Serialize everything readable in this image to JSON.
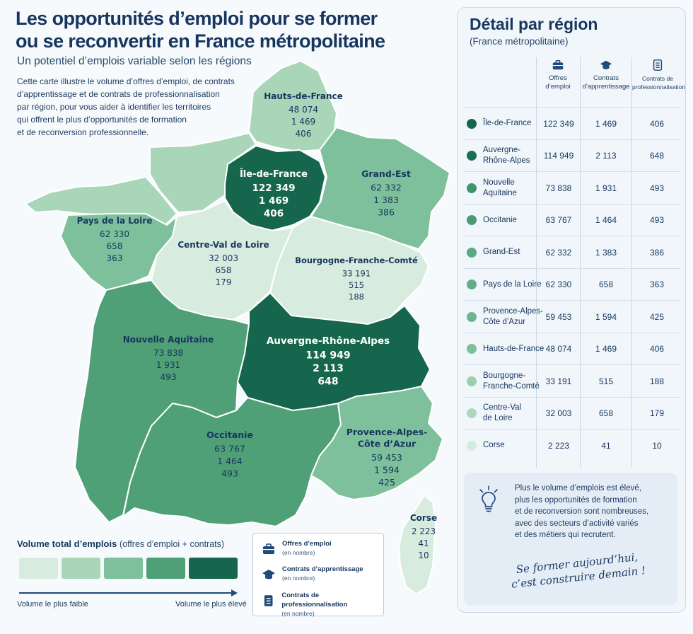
{
  "header": {
    "title_line1": "Les opportunités d’emploi pour se former",
    "title_line2": "ou se reconvertir en France métropolitaine",
    "subtitle": "Un potentiel d’emplois variable selon les régions",
    "intro": [
      "Cette carte illustre le volume d’offres d’emploi, de contrats",
      "d’apprentissage et de contrats de professionnalisation",
      "par région, pour vous aider à identifier les territoires",
      "qui offrent le plus d’opportunités de formation",
      "et de reconversion professionnelle."
    ]
  },
  "colors": {
    "level1": "#d7ecdf",
    "level2": "#a9d6b9",
    "level3": "#7ec09b",
    "level4": "#4f9f77",
    "level5": "#15664c",
    "corse": "#d7ecdf"
  },
  "map": {
    "regions": [
      {
        "id": "hauts-de-france",
        "label_lines": [
          "Hauts-de-France"
        ],
        "values": [
          "48 074",
          "1 469",
          "406"
        ],
        "level": 2
      },
      {
        "id": "ile-de-france",
        "label_lines": [
          "Île-de-France"
        ],
        "values": [
          "122 349",
          "1 469",
          "406"
        ],
        "level": 5
      },
      {
        "id": "grand-est",
        "label_lines": [
          "Grand-Est"
        ],
        "values": [
          "62 332",
          "1 383",
          "386"
        ],
        "level": 3
      },
      {
        "id": "pays-de-la-loire",
        "label_lines": [
          "Pays de la Loire"
        ],
        "values": [
          "62 330",
          "658",
          "363"
        ],
        "level": 3
      },
      {
        "id": "centre-val-de-loire",
        "label_lines": [
          "Centre-Val de Loire"
        ],
        "values": [
          "32 003",
          "658",
          "179"
        ],
        "level": 1
      },
      {
        "id": "bourgogne-franche-comte",
        "label_lines": [
          "Bourgogne-Franche-Comté"
        ],
        "values": [
          "33 191",
          "515",
          "188"
        ],
        "level": 1
      },
      {
        "id": "nouvelle-aquitaine",
        "label_lines": [
          "Nouvelle Aquitaine"
        ],
        "values": [
          "73 838",
          "1 931",
          "493"
        ],
        "level": 4
      },
      {
        "id": "auvergne-rhone-alpes",
        "label_lines": [
          "Auvergne-Rhône-Alpes"
        ],
        "values": [
          "114 949",
          "2 113",
          "648"
        ],
        "level": 5
      },
      {
        "id": "occitanie",
        "label_lines": [
          "Occitanie"
        ],
        "values": [
          "63 767",
          "1 464",
          "493"
        ],
        "level": 4
      },
      {
        "id": "provence-alpes-cote-d-azur",
        "label_lines": [
          "Provence-Alpes-",
          "Côte d’Azur"
        ],
        "values": [
          "59 453",
          "1 594",
          "425"
        ],
        "level": 3
      },
      {
        "id": "corse",
        "label_lines": [
          "Corse"
        ],
        "values": [
          "2 223",
          "41",
          "10"
        ],
        "level": 1
      },
      {
        "id": "normandie",
        "label_lines": [],
        "values": [],
        "level": 2
      },
      {
        "id": "bretagne",
        "label_lines": [],
        "values": [],
        "level": 2
      }
    ]
  },
  "legend": {
    "title": "Volume total d’emplois",
    "title_sub": "(offres d’emploi + contrats)",
    "low": "Volume le plus faible",
    "high": "Volume le plus élevé",
    "key": [
      {
        "label": "Offres d’emploi",
        "sub": "(en nombre)",
        "icon": "briefcase-icon"
      },
      {
        "label": "Contrats d’apprentissage",
        "sub": "(en nombre)",
        "icon": "graduation-cap-icon"
      },
      {
        "label": "Contrats de professionnalisation",
        "sub": "(en nombre)",
        "icon": "document-icon"
      }
    ]
  },
  "panel": {
    "title": "Détail par région",
    "subtitle": "(France métropolitaine)",
    "columns": [
      {
        "lines": [
          "Offres",
          "d’emploi"
        ],
        "icon": "briefcase-icon"
      },
      {
        "lines": [
          "Contrats",
          "d’apprentissage"
        ],
        "icon": "graduation-cap-icon"
      },
      {
        "lines": [
          "Contrats de",
          "professionnalisation"
        ],
        "icon": "document-icon"
      }
    ],
    "rows": [
      {
        "name": [
          "Île-de-France"
        ],
        "offres": "122 349",
        "apprentissage": "1 469",
        "pro": "406",
        "color": "#15664c"
      },
      {
        "name": [
          "Auvergne-",
          "Rhône-Alpes"
        ],
        "offres": "114 949",
        "apprentissage": "2 113",
        "pro": "648",
        "color": "#1a6e52"
      },
      {
        "name": [
          "Nouvelle",
          "Aquitaine"
        ],
        "offres": "73 838",
        "apprentissage": "1 931",
        "pro": "493",
        "color": "#3f9470"
      },
      {
        "name": [
          "Occitanie"
        ],
        "offres": "63 767",
        "apprentissage": "1 464",
        "pro": "493",
        "color": "#4a9b75"
      },
      {
        "name": [
          "Grand-Est"
        ],
        "offres": "62 332",
        "apprentissage": "1 383",
        "pro": "386",
        "color": "#5aa884"
      },
      {
        "name": [
          "Pays de la Loire"
        ],
        "offres": "62 330",
        "apprentissage": "658",
        "pro": "363",
        "color": "#62ad89"
      },
      {
        "name": [
          "Provence-Alpes-",
          "Côte d’Azur"
        ],
        "offres": "59 453",
        "apprentissage": "1 594",
        "pro": "425",
        "color": "#6eb592"
      },
      {
        "name": [
          "Hauts-de-France"
        ],
        "offres": "48 074",
        "apprentissage": "1 469",
        "pro": "406",
        "color": "#7ec09b"
      },
      {
        "name": [
          "Bourgogne-",
          "Franche-Comté"
        ],
        "offres": "33 191",
        "apprentissage": "515",
        "pro": "188",
        "color": "#9ccfb0"
      },
      {
        "name": [
          "Centre-Val",
          "de Loire"
        ],
        "offres": "32 003",
        "apprentissage": "658",
        "pro": "179",
        "color": "#aed8be"
      },
      {
        "name": [
          "Corse"
        ],
        "offres": "2 223",
        "apprentissage": "41",
        "pro": "10",
        "color": "#d3ebdc"
      }
    ]
  },
  "info": {
    "icon": "lightbulb-icon",
    "lines": [
      "Plus le volume d’emplois est élevé,",
      "plus les opportunités de formation",
      "et de reconversion sont nombreuses,",
      "avec des secteurs d’activité variés",
      "et des métiers qui recrutent."
    ],
    "slogan_line1": "Se former aujourd’hui,",
    "slogan_line2": "c’est construire demain !"
  }
}
